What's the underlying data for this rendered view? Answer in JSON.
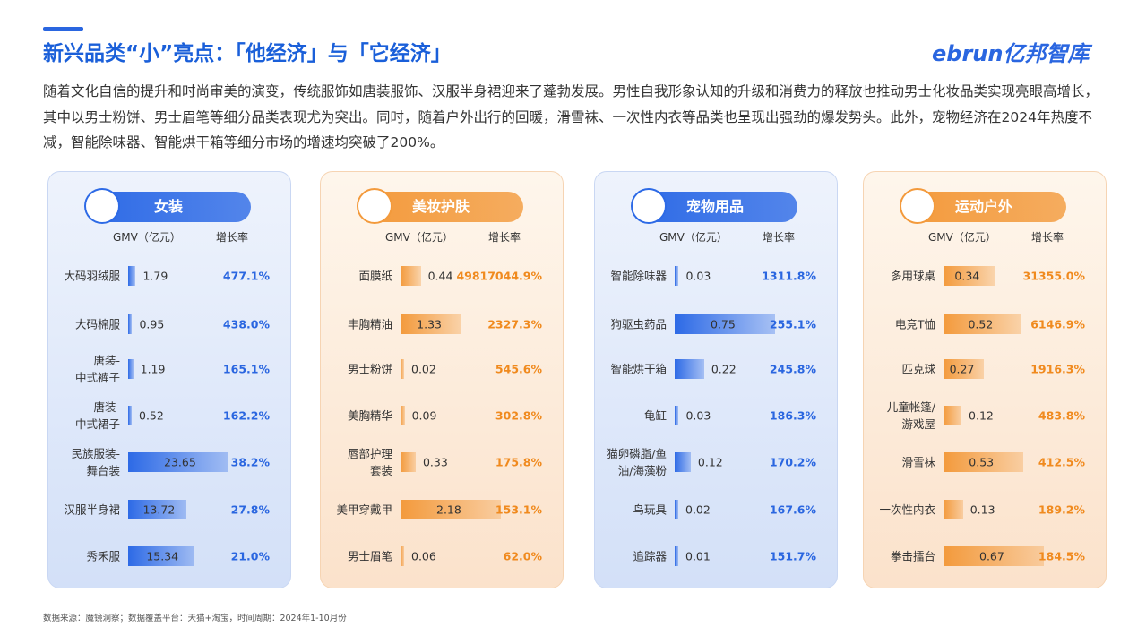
{
  "header": {
    "title": "新兴品类“小”亮点：「他经济」与「它经济」",
    "logo": "ebrun亿邦智库"
  },
  "intro": "随着文化自信的提升和时尚审美的演变，传统服饰如唐装服饰、汉服半身裙迎来了蓬勃发展。男性自我形象认知的升级和消费力的释放也推动男士化妆品类实现亮眼高增长，其中以男士粉饼、男士眉笔等细分品类表现尤为突出。同时，随着户外出行的回暖，滑雪袜、一次性内衣等品类也呈现出强劲的爆发势头。此外，宠物经济在2024年热度不减，智能除味器、智能烘干箱等细分市场的增速均突破了200%。",
  "source": "数据来源：魔镜洞察；数据覆盖平台：天猫+淘宝，时间周期：2024年1-10月份",
  "chart_data": [
    {
      "type": "bar",
      "title": "女装",
      "categories": [
        "大码羽绒服",
        "大码棉服",
        "唐装-\n中式裤子",
        "唐装-\n中式裙子",
        "民族服装-\n舞台装",
        "汉服半身裙",
        "秀禾服"
      ],
      "series": [
        {
          "name": "GMV（亿元）",
          "color": "#2d6ae6",
          "values": [
            1.79,
            0.95,
            1.19,
            0.52,
            23.65,
            13.72,
            15.34
          ]
        },
        {
          "name": "增长率",
          "color": "#2a66e0",
          "values": [
            477.1,
            438.0,
            165.1,
            162.2,
            38.2,
            27.8,
            21.0
          ],
          "value_labels": [
            "477.1%",
            "438.0%",
            "165.1%",
            "162.2%",
            "38.2%",
            "27.8%",
            "21.0%"
          ]
        }
      ]
    },
    {
      "type": "bar",
      "title": "美妆护肤",
      "categories": [
        "面膜纸",
        "丰胸精油",
        "男士粉饼",
        "美胸精华",
        "唇部护理\n套装",
        "美甲穿戴甲",
        "男士眉笔"
      ],
      "series": [
        {
          "name": "GMV（亿元）",
          "color": "#f39a3c",
          "values": [
            0.44,
            1.33,
            0.02,
            0.09,
            0.33,
            2.18,
            0.06
          ]
        },
        {
          "name": "增长率",
          "color": "#f08a1e",
          "values": [
            49817044.9,
            2327.3,
            545.6,
            302.8,
            175.8,
            153.1,
            62.0
          ],
          "value_labels": [
            "49817044.9%",
            "2327.3%",
            "545.6%",
            "302.8%",
            "175.8%",
            "153.1%",
            "62.0%"
          ]
        }
      ]
    },
    {
      "type": "bar",
      "title": "宠物用品",
      "categories": [
        "智能除味器",
        "狗驱虫药品",
        "智能烘干箱",
        "龟缸",
        "猫卵磷脂/鱼\n油/海藻粉",
        "鸟玩具",
        "追踪器"
      ],
      "series": [
        {
          "name": "GMV（亿元）",
          "color": "#2d6ae6",
          "values": [
            0.03,
            0.75,
            0.22,
            0.03,
            0.12,
            0.02,
            0.01
          ]
        },
        {
          "name": "增长率",
          "color": "#2a66e0",
          "values": [
            1311.8,
            255.1,
            245.8,
            186.3,
            170.2,
            167.6,
            151.7
          ],
          "value_labels": [
            "1311.8%",
            "255.1%",
            "245.8%",
            "186.3%",
            "170.2%",
            "167.6%",
            "151.7%"
          ]
        }
      ]
    },
    {
      "type": "bar",
      "title": "运动户外",
      "categories": [
        "多用球桌",
        "电竞T恤",
        "匹克球",
        "儿童帐篷/\n游戏屋",
        "滑雪袜",
        "一次性内衣",
        "拳击擂台"
      ],
      "series": [
        {
          "name": "GMV（亿元）",
          "color": "#f39a3c",
          "values": [
            0.34,
            0.52,
            0.27,
            0.12,
            0.53,
            0.13,
            0.67
          ]
        },
        {
          "name": "增长率",
          "color": "#f08a1e",
          "values": [
            31355.0,
            6146.9,
            1916.3,
            483.8,
            412.5,
            189.2,
            184.5
          ],
          "value_labels": [
            "31355.0%",
            "6146.9%",
            "1916.3%",
            "483.8%",
            "412.5%",
            "189.2%",
            "184.5%"
          ]
        }
      ]
    }
  ]
}
